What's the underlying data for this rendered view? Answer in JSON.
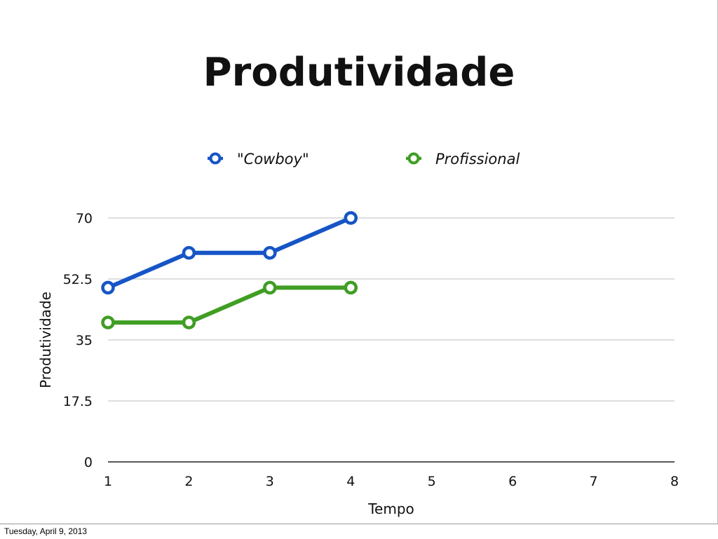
{
  "footer": {
    "date": "Tuesday, April 9, 2013"
  },
  "chart_data": {
    "type": "line",
    "title": "Produtividade",
    "xlabel": "Tempo",
    "ylabel": "Produtividade",
    "x_ticks": [
      "1",
      "2",
      "3",
      "4",
      "5",
      "6",
      "7",
      "8"
    ],
    "y_ticks": [
      "0",
      "17.5",
      "35",
      "52.5",
      "70"
    ],
    "xlim": [
      1,
      8
    ],
    "ylim": [
      0,
      70
    ],
    "grid": "horizontal",
    "legend_position": "top",
    "series": [
      {
        "name": "\"Cowboy\"",
        "color": "#1655c6",
        "x": [
          1,
          2,
          3,
          4
        ],
        "y": [
          50,
          60,
          60,
          70
        ]
      },
      {
        "name": "Profissional",
        "color": "#3f9e23",
        "x": [
          1,
          2,
          3,
          4
        ],
        "y": [
          40,
          40,
          50,
          50
        ]
      }
    ]
  }
}
